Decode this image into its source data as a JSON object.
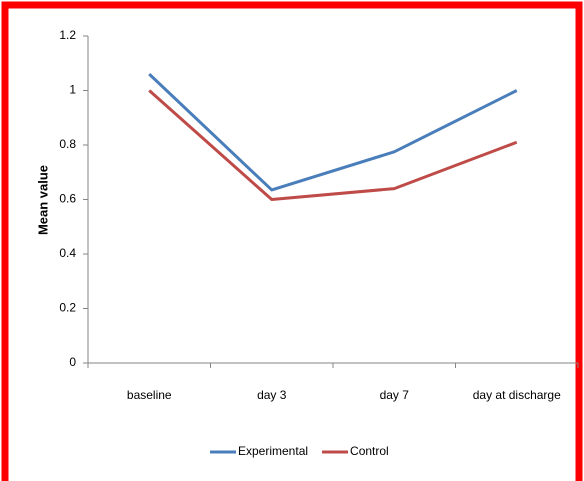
{
  "chart_data": {
    "type": "line",
    "ylabel": "Mean value",
    "categories": [
      "baseline",
      "day 3",
      "day 7",
      "day at discharge"
    ],
    "series": [
      {
        "name": "Experimental",
        "color": "#4a7ebb",
        "values": [
          1.06,
          0.635,
          0.775,
          1.0
        ]
      },
      {
        "name": "Control",
        "color": "#be4b48",
        "values": [
          1.0,
          0.6,
          0.64,
          0.81
        ]
      }
    ],
    "ylim": [
      0,
      1.2
    ],
    "yticks": [
      0,
      0.2,
      0.4,
      0.6,
      0.8,
      1,
      1.2
    ],
    "grid": false,
    "legend": "bottom"
  }
}
